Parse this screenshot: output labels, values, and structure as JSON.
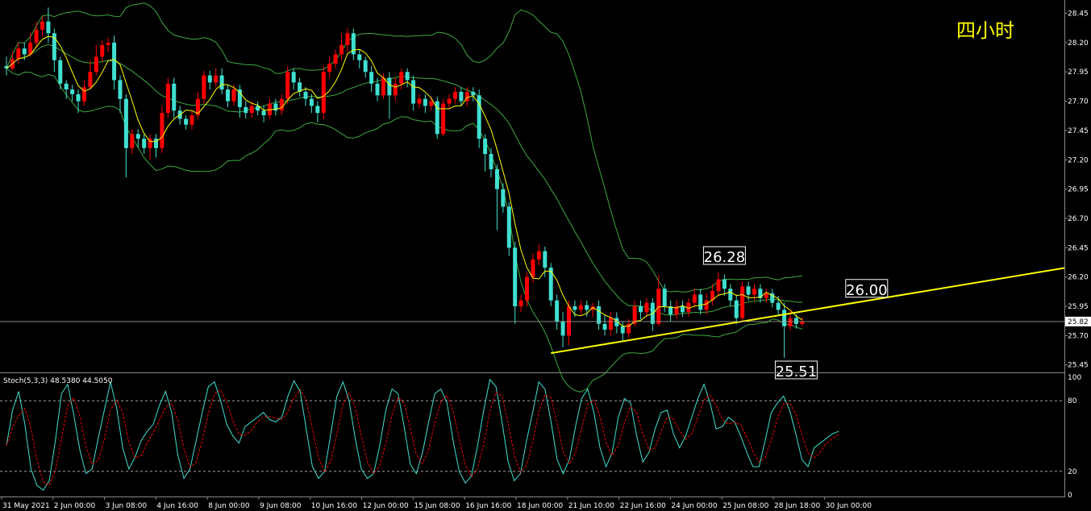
{
  "timeframe_label": "四小时",
  "colors": {
    "background": "#000000",
    "bull_candle": "#ff0000",
    "bear_candle": "#40e0d0",
    "bollinger": "#3ea83e",
    "ma": "#ffff00",
    "trendline": "#ffff00",
    "stoch_main": "#40e0d0",
    "stoch_signal": "#ff0000",
    "axis_text": "#ffffff",
    "label_text": "#ffff00"
  },
  "price_axis": {
    "ticks": [
      "28.45",
      "28.20",
      "27.95",
      "27.70",
      "27.45",
      "27.20",
      "26.95",
      "26.70",
      "26.45",
      "26.20",
      "25.95",
      "25.70",
      "25.45"
    ],
    "current_price": "25.82"
  },
  "stoch_axis": {
    "ticks": [
      "100",
      "80",
      "20",
      "0"
    ]
  },
  "indicator": {
    "label": "Stoch(5,3,3) 48.5380 44.5050"
  },
  "time_axis": {
    "labels": [
      "31 May 2021",
      "2 Jun 00:00",
      "3 Jun 08:00",
      "4 Jun 16:00",
      "8 Jun 00:00",
      "9 Jun 08:00",
      "10 Jun 16:00",
      "12 Jun 00:00",
      "15 Jun 08:00",
      "16 Jun 16:00",
      "18 Jun 00:00",
      "21 Jun 10:00",
      "22 Jun 16:00",
      "24 Jun 00:00",
      "25 Jun 08:00",
      "28 Jun 18:00",
      "30 Jun 00:00"
    ]
  },
  "annotations": {
    "high": "26.28",
    "low": "25.51",
    "trend": "26.00"
  },
  "chart_data": {
    "type": "candlestick",
    "ylim": [
      25.4,
      28.55
    ],
    "stoch_ylim": [
      0,
      100
    ],
    "candles": [
      [
        28.0,
        27.98,
        28.08,
        27.92
      ],
      [
        27.98,
        28.06,
        28.12,
        27.96
      ],
      [
        28.06,
        28.15,
        28.2,
        28.02
      ],
      [
        28.15,
        28.1,
        28.2,
        28.05
      ],
      [
        28.1,
        28.2,
        28.28,
        28.08
      ],
      [
        28.2,
        28.31,
        28.38,
        28.15
      ],
      [
        28.31,
        28.38,
        28.42,
        28.25
      ],
      [
        28.38,
        28.28,
        28.5,
        28.2
      ],
      [
        28.28,
        28.05,
        28.32,
        27.95
      ],
      [
        28.05,
        27.85,
        28.08,
        27.8
      ],
      [
        27.85,
        27.8,
        27.88,
        27.72
      ],
      [
        27.8,
        27.76,
        27.84,
        27.7
      ],
      [
        27.76,
        27.7,
        27.8,
        27.6
      ],
      [
        27.7,
        27.82,
        27.88,
        27.66
      ],
      [
        27.82,
        27.95,
        28.05,
        27.8
      ],
      [
        27.95,
        28.08,
        28.18,
        27.92
      ],
      [
        28.08,
        28.18,
        28.22,
        28.04
      ],
      [
        28.18,
        28.2,
        28.24,
        28.12
      ],
      [
        28.2,
        27.88,
        28.26,
        27.8
      ],
      [
        27.88,
        27.72,
        27.92,
        27.6
      ],
      [
        27.72,
        27.3,
        27.76,
        27.05
      ],
      [
        27.3,
        27.42,
        27.46,
        27.25
      ],
      [
        27.42,
        27.38,
        27.46,
        27.3
      ],
      [
        27.38,
        27.3,
        27.42,
        27.25
      ],
      [
        27.3,
        27.38,
        27.42,
        27.2
      ],
      [
        27.38,
        27.3,
        27.42,
        27.22
      ],
      [
        27.3,
        27.6,
        27.66,
        27.26
      ],
      [
        27.6,
        27.85,
        27.9,
        27.56
      ],
      [
        27.85,
        27.62,
        27.9,
        27.56
      ],
      [
        27.62,
        27.55,
        27.66,
        27.5
      ],
      [
        27.55,
        27.5,
        27.58,
        27.46
      ],
      [
        27.5,
        27.58,
        27.62,
        27.46
      ],
      [
        27.58,
        27.72,
        27.78,
        27.55
      ],
      [
        27.72,
        27.92,
        27.96,
        27.68
      ],
      [
        27.92,
        27.86,
        27.96,
        27.8
      ],
      [
        27.86,
        27.92,
        27.98,
        27.82
      ],
      [
        27.92,
        27.8,
        27.98,
        27.76
      ],
      [
        27.8,
        27.7,
        27.84,
        27.65
      ],
      [
        27.7,
        27.8,
        27.84,
        27.66
      ],
      [
        27.8,
        27.65,
        27.84,
        27.56
      ],
      [
        27.65,
        27.6,
        27.7,
        27.55
      ],
      [
        27.6,
        27.66,
        27.7,
        27.56
      ],
      [
        27.66,
        27.62,
        27.7,
        27.58
      ],
      [
        27.62,
        27.58,
        27.66,
        27.52
      ],
      [
        27.58,
        27.68,
        27.72,
        27.55
      ],
      [
        27.68,
        27.62,
        27.72,
        27.58
      ],
      [
        27.62,
        27.72,
        27.76,
        27.58
      ],
      [
        27.72,
        27.95,
        28.0,
        27.68
      ],
      [
        27.95,
        27.86,
        27.98,
        27.8
      ],
      [
        27.86,
        27.78,
        27.9,
        27.74
      ],
      [
        27.78,
        27.72,
        27.82,
        27.66
      ],
      [
        27.72,
        27.66,
        27.76,
        27.6
      ],
      [
        27.66,
        27.6,
        27.7,
        27.52
      ],
      [
        27.6,
        27.95,
        28.0,
        27.55
      ],
      [
        27.95,
        28.02,
        28.08,
        27.9
      ],
      [
        28.02,
        28.1,
        28.14,
        27.98
      ],
      [
        28.1,
        28.18,
        28.28,
        28.05
      ],
      [
        28.18,
        28.28,
        28.32,
        28.12
      ],
      [
        28.28,
        28.1,
        28.32,
        28.05
      ],
      [
        28.1,
        28.05,
        28.14,
        27.98
      ],
      [
        28.05,
        27.95,
        28.08,
        27.9
      ],
      [
        27.95,
        27.85,
        28.0,
        27.78
      ],
      [
        27.85,
        27.75,
        27.9,
        27.7
      ],
      [
        27.75,
        27.9,
        27.94,
        27.72
      ],
      [
        27.9,
        27.75,
        27.95,
        27.55
      ],
      [
        27.75,
        27.85,
        27.9,
        27.7
      ],
      [
        27.85,
        27.95,
        27.98,
        27.8
      ],
      [
        27.95,
        27.88,
        27.98,
        27.82
      ],
      [
        27.88,
        27.68,
        27.92,
        27.62
      ],
      [
        27.68,
        27.72,
        27.76,
        27.64
      ],
      [
        27.72,
        27.66,
        27.76,
        27.6
      ],
      [
        27.66,
        27.7,
        27.74,
        27.62
      ],
      [
        27.7,
        27.42,
        27.74,
        27.38
      ],
      [
        27.42,
        27.68,
        27.72,
        27.4
      ],
      [
        27.68,
        27.72,
        27.76,
        27.64
      ],
      [
        27.72,
        27.78,
        27.82,
        27.68
      ],
      [
        27.78,
        27.7,
        27.82,
        27.66
      ],
      [
        27.7,
        27.78,
        27.82,
        27.66
      ],
      [
        27.78,
        27.75,
        27.82,
        27.7
      ],
      [
        27.75,
        27.38,
        27.8,
        27.3
      ],
      [
        27.38,
        27.25,
        27.42,
        27.1
      ],
      [
        27.25,
        27.12,
        27.3,
        27.05
      ],
      [
        27.12,
        26.95,
        27.16,
        26.6
      ],
      [
        26.95,
        26.8,
        27.0,
        26.75
      ],
      [
        26.8,
        26.45,
        26.84,
        26.38
      ],
      [
        26.45,
        25.95,
        26.5,
        25.8
      ],
      [
        25.95,
        26.0,
        26.05,
        25.9
      ],
      [
        26.0,
        26.2,
        26.24,
        25.95
      ],
      [
        26.2,
        26.35,
        26.4,
        26.15
      ],
      [
        26.35,
        26.42,
        26.48,
        26.3
      ],
      [
        26.42,
        26.28,
        26.46,
        26.2
      ],
      [
        26.28,
        26.0,
        26.32,
        25.95
      ],
      [
        26.0,
        25.82,
        26.05,
        25.75
      ],
      [
        25.82,
        25.7,
        25.9,
        25.6
      ],
      [
        25.7,
        25.95,
        26.0,
        25.62
      ],
      [
        25.95,
        25.92,
        26.0,
        25.86
      ],
      [
        25.92,
        25.96,
        26.0,
        25.88
      ],
      [
        25.96,
        25.92,
        26.0,
        25.86
      ],
      [
        25.92,
        25.95,
        25.98,
        25.86
      ],
      [
        25.95,
        25.8,
        26.0,
        25.75
      ],
      [
        25.8,
        25.75,
        25.88,
        25.7
      ],
      [
        25.75,
        25.85,
        25.9,
        25.7
      ],
      [
        25.85,
        25.78,
        25.9,
        25.72
      ],
      [
        25.78,
        25.72,
        25.82,
        25.66
      ],
      [
        25.72,
        25.8,
        25.84,
        25.68
      ],
      [
        25.8,
        25.95,
        26.0,
        25.78
      ],
      [
        25.95,
        25.9,
        26.0,
        25.84
      ],
      [
        25.9,
        25.98,
        26.02,
        25.86
      ],
      [
        25.98,
        25.8,
        26.02,
        25.74
      ],
      [
        25.8,
        26.1,
        26.22,
        25.78
      ],
      [
        26.1,
        25.95,
        26.14,
        25.9
      ],
      [
        25.95,
        25.88,
        26.0,
        25.82
      ],
      [
        25.88,
        25.95,
        26.0,
        25.84
      ],
      [
        25.95,
        25.9,
        26.0,
        25.86
      ],
      [
        25.9,
        25.98,
        26.02,
        25.86
      ],
      [
        25.98,
        26.05,
        26.1,
        25.94
      ],
      [
        26.05,
        25.92,
        26.1,
        25.88
      ],
      [
        25.92,
        26.0,
        26.06,
        25.88
      ],
      [
        26.0,
        26.08,
        26.14,
        25.96
      ],
      [
        26.08,
        26.18,
        26.24,
        26.04
      ],
      [
        26.18,
        26.1,
        26.22,
        26.04
      ],
      [
        26.1,
        26.0,
        26.14,
        25.95
      ],
      [
        26.0,
        25.85,
        26.05,
        25.8
      ],
      [
        25.85,
        26.12,
        26.16,
        25.82
      ],
      [
        26.12,
        26.05,
        26.16,
        26.0
      ],
      [
        26.05,
        26.1,
        26.14,
        26.0
      ],
      [
        26.1,
        26.02,
        26.14,
        25.98
      ],
      [
        26.02,
        26.06,
        26.1,
        25.98
      ],
      [
        26.06,
        25.98,
        26.1,
        25.94
      ],
      [
        25.98,
        25.92,
        26.04,
        25.88
      ],
      [
        25.92,
        25.78,
        25.98,
        25.51
      ],
      [
        25.78,
        25.85,
        25.92,
        25.74
      ],
      [
        25.85,
        25.8,
        25.88,
        25.76
      ],
      [
        25.8,
        25.82,
        25.86,
        25.78
      ]
    ],
    "annotations": [
      {
        "text": "26.28",
        "price": 26.28,
        "candle": 120
      },
      {
        "text": "25.51",
        "price": 25.51,
        "candle": 132
      },
      {
        "text": "26.00",
        "price": 26.0,
        "candle": 140
      }
    ],
    "trendline": {
      "from": {
        "candle": 91,
        "price": 25.55
      },
      "to": {
        "candle": 163,
        "price": 26.16
      }
    },
    "stoch_main": [
      42,
      72,
      88,
      60,
      22,
      8,
      4,
      12,
      46,
      86,
      94,
      68,
      38,
      18,
      22,
      48,
      72,
      96,
      74,
      40,
      22,
      32,
      46,
      54,
      60,
      76,
      88,
      70,
      34,
      14,
      22,
      46,
      70,
      92,
      96,
      80,
      60,
      50,
      44,
      58,
      62,
      66,
      70,
      64,
      62,
      66,
      84,
      97,
      88,
      56,
      24,
      14,
      20,
      52,
      84,
      96,
      80,
      48,
      22,
      14,
      18,
      42,
      72,
      90,
      86,
      58,
      26,
      18,
      36,
      62,
      86,
      90,
      78,
      46,
      20,
      10,
      16,
      42,
      72,
      98,
      92,
      62,
      28,
      12,
      18,
      46,
      70,
      96,
      90,
      62,
      30,
      18,
      30,
      58,
      82,
      90,
      70,
      40,
      24,
      36,
      66,
      82,
      78,
      50,
      28,
      36,
      56,
      70,
      72,
      52,
      40,
      50,
      66,
      82,
      94,
      78,
      56,
      58,
      66,
      62,
      50,
      36,
      24,
      24,
      46,
      70,
      78,
      84,
      72,
      52,
      30,
      24,
      40,
      44,
      48,
      52,
      54
    ]
  }
}
